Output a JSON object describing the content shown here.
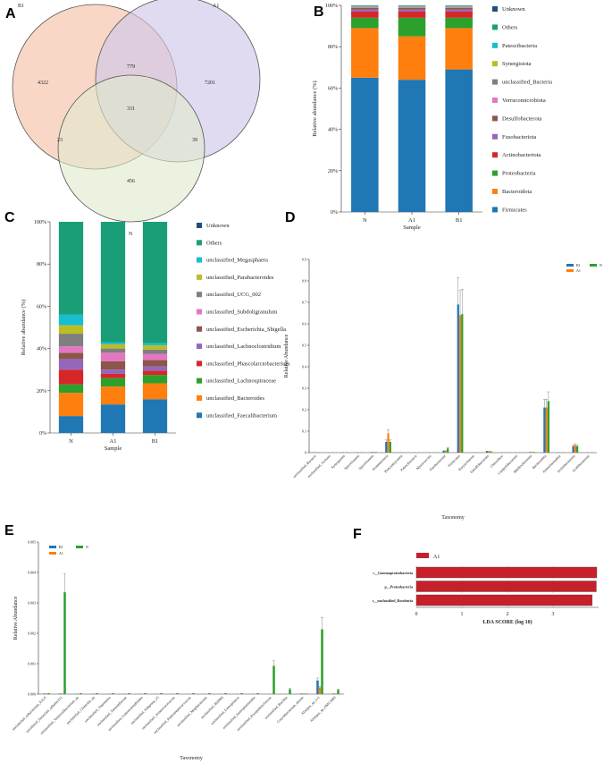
{
  "panels": {
    "a": "A",
    "b": "B",
    "c": "C",
    "d": "D",
    "e": "E",
    "f": "F"
  },
  "chart_data": [
    {
      "panel": "A",
      "type": "venn",
      "sets": [
        "B1",
        "A1",
        "N"
      ],
      "regions": {
        "B1_only": "4322",
        "A1_only": "7201",
        "N_only": "456",
        "B1_A1": "779",
        "B1_N": "23",
        "A1_N": "39",
        "B1_A1_N": "331"
      },
      "colors": {
        "B1": "#f7c9b4",
        "A1": "#cfc8ea",
        "N": "#dfeacb"
      }
    },
    {
      "panel": "B",
      "type": "bar",
      "stacked": true,
      "categories": [
        "N",
        "A1",
        "B1"
      ],
      "xlabel": "Sample",
      "ylabel": "Relative abundance (%)",
      "yticks": [
        "0%",
        "20%",
        "40%",
        "60%",
        "80%",
        "100%"
      ],
      "series": [
        {
          "name": "Firmicutes",
          "color": "#1f77b4",
          "values": [
            65,
            64,
            69
          ]
        },
        {
          "name": "Bacteroidota",
          "color": "#ff7f0e",
          "values": [
            24,
            21,
            20
          ]
        },
        {
          "name": "Proteobacteria",
          "color": "#2ca02c",
          "values": [
            5,
            9,
            5
          ]
        },
        {
          "name": "Actinobacteriota",
          "color": "#d62728",
          "values": [
            3,
            3,
            3
          ]
        },
        {
          "name": "Fusobacteriota",
          "color": "#9467bd",
          "values": [
            1,
            1,
            1
          ]
        },
        {
          "name": "Desulfobacterota",
          "color": "#8c564b",
          "values": [
            0.7,
            0.7,
            0.7
          ]
        },
        {
          "name": "Verrucomicrobiota",
          "color": "#e377c2",
          "values": [
            0.3,
            0.3,
            0.3
          ]
        },
        {
          "name": "unclassified_Bacteria",
          "color": "#7f7f7f",
          "values": [
            0.3,
            0.3,
            0.3
          ]
        },
        {
          "name": "Synergistota",
          "color": "#bcbd22",
          "values": [
            0.2,
            0.2,
            0.2
          ]
        },
        {
          "name": "Patescibacteria",
          "color": "#17becf",
          "values": [
            0.1,
            0.1,
            0.1
          ]
        },
        {
          "name": "Others",
          "color": "#1a9e77",
          "values": [
            0.3,
            0.3,
            0.3
          ]
        },
        {
          "name": "Unknown",
          "color": "#1f4e79",
          "values": [
            0.1,
            0.1,
            0.1
          ]
        }
      ]
    },
    {
      "panel": "C",
      "type": "bar",
      "stacked": true,
      "categories": [
        "N",
        "A1",
        "B1"
      ],
      "xlabel": "Sample",
      "ylabel": "Relative abundance (%)",
      "yticks": [
        "0%",
        "20%",
        "40%",
        "60%",
        "80%",
        "100%"
      ],
      "series": [
        {
          "name": "unclassified_Faecalibacterium",
          "color": "#1f77b4",
          "values": [
            8,
            13.5,
            16
          ]
        },
        {
          "name": "unclassified_Bacteroides",
          "color": "#ff7f0e",
          "values": [
            11,
            8.5,
            7.5
          ]
        },
        {
          "name": "unclassified_Lachnospiraceae",
          "color": "#2ca02c",
          "values": [
            4,
            4,
            4
          ]
        },
        {
          "name": "unclassified_Phascolarctobacterium",
          "color": "#d62728",
          "values": [
            7,
            2,
            2
          ]
        },
        {
          "name": "unclassified_Lachnoclostridium",
          "color": "#9467bd",
          "values": [
            5,
            2,
            2
          ]
        },
        {
          "name": "unclassified_Escherichia_Shigella",
          "color": "#8c564b",
          "values": [
            3,
            4,
            3
          ]
        },
        {
          "name": "unclassified_Subdoligranulum",
          "color": "#e377c2",
          "values": [
            3,
            4,
            3
          ]
        },
        {
          "name": "unclassified_UCG_002",
          "color": "#7f7f7f",
          "values": [
            6,
            2,
            2
          ]
        },
        {
          "name": "unclassified_Parabacteroides",
          "color": "#bcbd22",
          "values": [
            4,
            2,
            2
          ]
        },
        {
          "name": "unclassified_Megasphaera",
          "color": "#17becf",
          "values": [
            5,
            1,
            1
          ]
        },
        {
          "name": "Others",
          "color": "#1a9e77",
          "values": [
            44,
            57,
            57.5
          ]
        },
        {
          "name": "Unknown",
          "color": "#1f4e79",
          "values": [
            0,
            0,
            0
          ]
        }
      ]
    },
    {
      "panel": "D",
      "type": "bar",
      "xlabel": "Taxonomy",
      "ylabel": "Relative Abundance",
      "ylim": [
        0,
        0.9
      ],
      "yticks": [
        "0",
        "0.1",
        "0.2",
        "0.3",
        "0.4",
        "0.5",
        "0.6",
        "0.7",
        "0.8",
        "0.9"
      ],
      "categories": [
        "unclassified_Bacteria",
        "unclassified_Archaea",
        "Synergistota",
        "Spirochaetota",
        "Spirochaetota",
        "Proteobacteria",
        "Planctomycetota",
        "Patescibacteria",
        "Myxococcota",
        "Fusobacteriota",
        "Firmicutes",
        "Euryarchaeota",
        "Desulfobacterota",
        "Chloroflexi",
        "Campylobacterota",
        "Bdellovibrionota",
        "Bacteroidota",
        "Armatimonadota",
        "Actinobacteriota",
        "Acidobacteriota"
      ],
      "series": [
        {
          "name": "B1",
          "color": "#1f77b4",
          "values": [
            0.002,
            0.001,
            0.002,
            0.002,
            0.003,
            0.05,
            0.001,
            0.001,
            0.001,
            0.01,
            0.69,
            0.001,
            0.008,
            0.001,
            0.001,
            0.003,
            0.21,
            0.001,
            0.03,
            0.001
          ]
        },
        {
          "name": "A1",
          "color": "#ff7f0e",
          "values": [
            0.002,
            0.001,
            0.002,
            0.002,
            0.003,
            0.09,
            0.001,
            0.001,
            0.001,
            0.01,
            0.64,
            0.001,
            0.008,
            0.001,
            0.001,
            0.003,
            0.21,
            0.001,
            0.035,
            0.001
          ]
        },
        {
          "name": "N",
          "color": "#2ca02c",
          "values": [
            0.002,
            0.001,
            0.002,
            0.002,
            0.003,
            0.05,
            0.001,
            0.001,
            0.001,
            0.02,
            0.645,
            0.001,
            0.006,
            0.001,
            0.001,
            0.003,
            0.24,
            0.001,
            0.03,
            0.001
          ]
        }
      ]
    },
    {
      "panel": "E",
      "type": "bar",
      "xlabel": "Taxonomy",
      "ylabel": "Relative Abundance",
      "ylim": [
        0,
        0.005
      ],
      "yticks": [
        "0.000",
        "0.001",
        "0.002",
        "0.003",
        "0.004",
        "0.005"
      ],
      "categories": [
        "unclassified_eubacterium_EA25",
        "uncultured_bacterium_adhufec311",
        "unclassified_Vermiculibacterium_sp",
        "unclassified_Clostridia_sp",
        "unclassified_Treponema",
        "unclassified_Tannerellaceae",
        "unclassified_Gastranaerophilales",
        "unclassified_Subgroup_25",
        "unclassified_Anaerovoracaceae",
        "unclassified_Peptostreptococcaceae",
        "unclassified_Mogibacterium",
        "unclassified_M2PB4",
        "unclassified_Lentisphaeria",
        "unclassified_Izemoplasmatales",
        "unclassified_Erysipelotrichaceae",
        "unclassified_Bacillus",
        "Corynebacterium_durum",
        "Alistipes_sp_cv1",
        "Alistipes_sp_OMC2089"
      ],
      "series": [
        {
          "name": "B1",
          "color": "#1f77b4",
          "values": [
            2e-05,
            2e-05,
            1e-05,
            1e-05,
            1e-05,
            1e-05,
            1e-05,
            1e-05,
            1e-05,
            1e-05,
            1e-05,
            1e-05,
            1e-05,
            1e-05,
            1e-05,
            1e-05,
            2e-05,
            0.00045,
            2e-05
          ]
        },
        {
          "name": "A1",
          "color": "#ff7f0e",
          "values": [
            2e-05,
            2e-05,
            1e-05,
            1e-05,
            1e-05,
            1e-05,
            1e-05,
            1e-05,
            1e-05,
            1e-05,
            1e-05,
            1e-05,
            1e-05,
            1e-05,
            1e-05,
            1e-05,
            2e-05,
            0.00022,
            2e-05
          ]
        },
        {
          "name": "N",
          "color": "#2ca02c",
          "values": [
            3e-05,
            0.00335,
            3e-05,
            3e-05,
            3e-05,
            3e-05,
            3e-05,
            3e-05,
            3e-05,
            3e-05,
            3e-05,
            3e-05,
            3e-05,
            3e-05,
            0.00093,
            0.00016,
            2e-05,
            0.00213,
            0.00014
          ]
        }
      ]
    },
    {
      "panel": "F",
      "type": "bar",
      "orientation": "horizontal",
      "legend": "A1",
      "xlabel": "LDA SCORE (log 10)",
      "xticks": [
        "0",
        "1",
        "2",
        "3"
      ],
      "xlim": [
        0,
        4
      ],
      "color": "#c8202a",
      "categories": [
        "c__Gammaproteobacteria",
        "p__Proteobacteria",
        "s__unclassified_Roseburia"
      ],
      "values": [
        3.96,
        3.95,
        3.86
      ]
    }
  ]
}
